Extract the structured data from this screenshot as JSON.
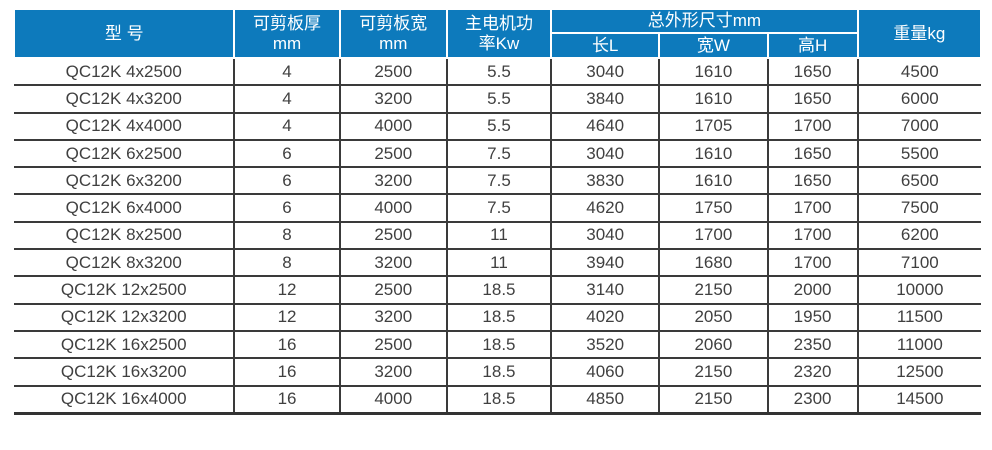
{
  "table": {
    "title_semantic": "QC12K shearing machine specification table",
    "header": {
      "model": "型 号",
      "thickness_line1": "可剪板厚",
      "thickness_line2": "mm",
      "width_line1": "可剪板宽",
      "width_line2": "mm",
      "power_line1": "主电机功",
      "power_line2": "率Kw",
      "dims_group": "总外形尺寸mm",
      "dim_length": "长L",
      "dim_width": "宽W",
      "dim_height": "高H",
      "weight": "重量kg"
    },
    "column_keys": [
      "model",
      "thickness_mm",
      "width_mm",
      "power_kw",
      "length_mm",
      "width_overall_mm",
      "height_mm",
      "weight_kg"
    ],
    "rows": [
      {
        "model": "QC12K 4x2500",
        "thickness_mm": "4",
        "width_mm": "2500",
        "power_kw": "5.5",
        "length_mm": "3040",
        "width_overall_mm": "1610",
        "height_mm": "1650",
        "weight_kg": "4500"
      },
      {
        "model": "QC12K 4x3200",
        "thickness_mm": "4",
        "width_mm": "3200",
        "power_kw": "5.5",
        "length_mm": "3840",
        "width_overall_mm": "1610",
        "height_mm": "1650",
        "weight_kg": "6000"
      },
      {
        "model": "QC12K 4x4000",
        "thickness_mm": "4",
        "width_mm": "4000",
        "power_kw": "5.5",
        "length_mm": "4640",
        "width_overall_mm": "1705",
        "height_mm": "1700",
        "weight_kg": "7000"
      },
      {
        "model": "QC12K 6x2500",
        "thickness_mm": "6",
        "width_mm": "2500",
        "power_kw": "7.5",
        "length_mm": "3040",
        "width_overall_mm": "1610",
        "height_mm": "1650",
        "weight_kg": "5500"
      },
      {
        "model": "QC12K 6x3200",
        "thickness_mm": "6",
        "width_mm": "3200",
        "power_kw": "7.5",
        "length_mm": "3830",
        "width_overall_mm": "1610",
        "height_mm": "1650",
        "weight_kg": "6500"
      },
      {
        "model": "QC12K 6x4000",
        "thickness_mm": "6",
        "width_mm": "4000",
        "power_kw": "7.5",
        "length_mm": "4620",
        "width_overall_mm": "1750",
        "height_mm": "1700",
        "weight_kg": "7500"
      },
      {
        "model": "QC12K 8x2500",
        "thickness_mm": "8",
        "width_mm": "2500",
        "power_kw": "11",
        "length_mm": "3040",
        "width_overall_mm": "1700",
        "height_mm": "1700",
        "weight_kg": "6200"
      },
      {
        "model": "QC12K 8x3200",
        "thickness_mm": "8",
        "width_mm": "3200",
        "power_kw": "11",
        "length_mm": "3940",
        "width_overall_mm": "1680",
        "height_mm": "1700",
        "weight_kg": "7100"
      },
      {
        "model": "QC12K 12x2500",
        "thickness_mm": "12",
        "width_mm": "2500",
        "power_kw": "18.5",
        "length_mm": "3140",
        "width_overall_mm": "2150",
        "height_mm": "2000",
        "weight_kg": "10000"
      },
      {
        "model": "QC12K 12x3200",
        "thickness_mm": "12",
        "width_mm": "3200",
        "power_kw": "18.5",
        "length_mm": "4020",
        "width_overall_mm": "2050",
        "height_mm": "1950",
        "weight_kg": "11500"
      },
      {
        "model": "QC12K 16x2500",
        "thickness_mm": "16",
        "width_mm": "2500",
        "power_kw": "18.5",
        "length_mm": "3520",
        "width_overall_mm": "2060",
        "height_mm": "2350",
        "weight_kg": "11000"
      },
      {
        "model": "QC12K 16x3200",
        "thickness_mm": "16",
        "width_mm": "3200",
        "power_kw": "18.5",
        "length_mm": "4060",
        "width_overall_mm": "2150",
        "height_mm": "2320",
        "weight_kg": "12500"
      },
      {
        "model": "QC12K 16x4000",
        "thickness_mm": "16",
        "width_mm": "4000",
        "power_kw": "18.5",
        "length_mm": "4850",
        "width_overall_mm": "2150",
        "height_mm": "2300",
        "weight_kg": "14500"
      }
    ]
  },
  "colors": {
    "header_bg": "#0d7abc",
    "header_text": "#ffffff",
    "body_text": "#404040",
    "grid_line": "#3a3a3a"
  }
}
